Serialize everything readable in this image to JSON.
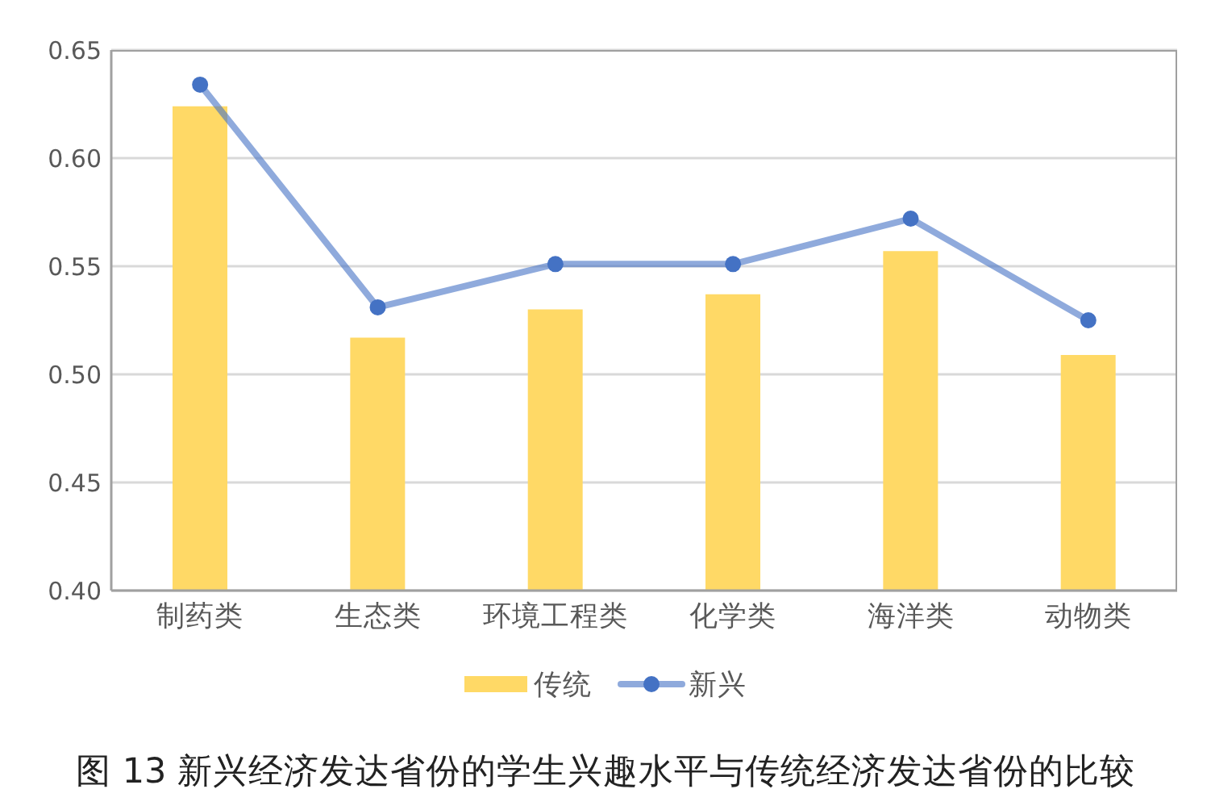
{
  "chart_data": {
    "type": "bar",
    "title": "图 13 新兴经济发达省份的学生兴趣水平与传统经济发达省份的比较",
    "categories": [
      "制药类",
      "生态类",
      "环境工程类",
      "化学类",
      "海洋类",
      "动物类"
    ],
    "series": [
      {
        "name": "传统",
        "color": "#ffd966",
        "values": [
          0.624,
          0.517,
          0.53,
          0.537,
          0.557,
          0.509
        ]
      },
      {
        "name": "新兴",
        "type": "line",
        "color": "#4472c4",
        "values": [
          0.634,
          0.531,
          0.551,
          0.551,
          0.572,
          0.525
        ]
      }
    ],
    "ylim": [
      0.4,
      0.65
    ],
    "yticks": [
      {
        "value": 0.4,
        "label": "0.40"
      },
      0.45,
      {
        "value": 0.5,
        "label": "0.50"
      },
      0.55,
      {
        "value": 0.6,
        "label": "0.60"
      },
      0.65
    ],
    "grid": "y",
    "legend": "bottom",
    "marker": "circle"
  }
}
